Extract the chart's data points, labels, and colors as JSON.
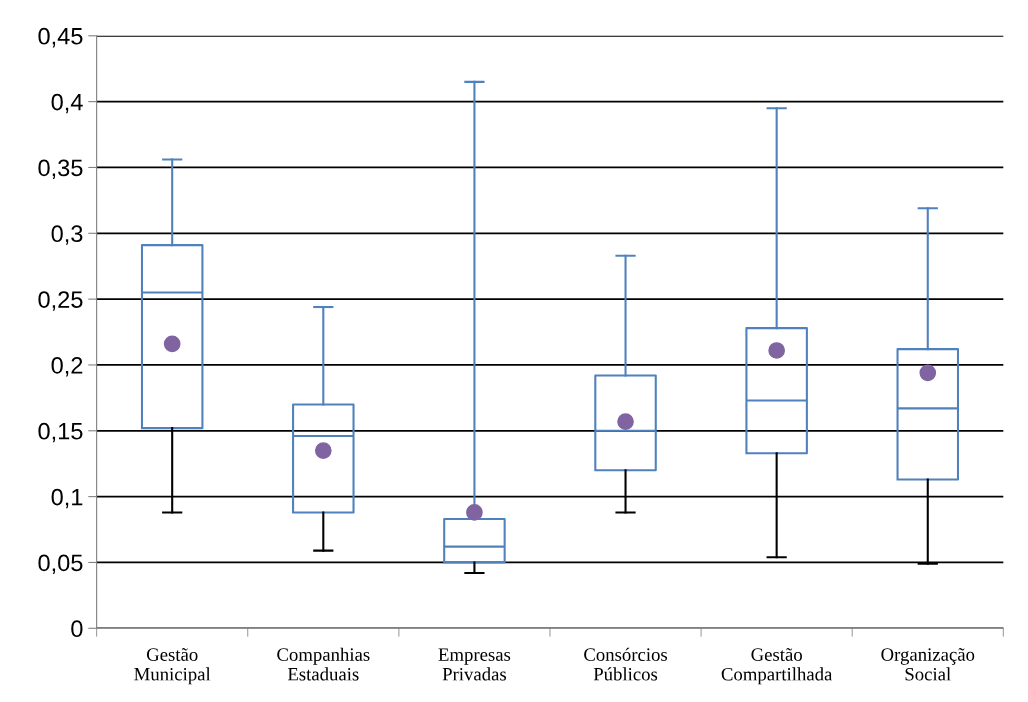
{
  "chart_data": {
    "type": "box",
    "categories": [
      "Gestão\nMunicipal",
      "Companhias\nEstaduais",
      "Empresas\nPrivadas",
      "Consórcios\nPúblicos",
      "Gestão\nCompartilhada",
      "Organização\nSocial"
    ],
    "series": [
      {
        "color": "#4f81bd",
        "boxes": [
          {
            "low": 0.088,
            "q1": 0.152,
            "median": 0.255,
            "q3": 0.291,
            "high": 0.356,
            "mean": 0.216
          },
          {
            "low": 0.059,
            "q1": 0.088,
            "median": 0.146,
            "q3": 0.17,
            "high": 0.244,
            "mean": 0.135
          },
          {
            "low": 0.042,
            "q1": 0.05,
            "median": 0.062,
            "q3": 0.083,
            "high": 0.415,
            "mean": 0.088
          },
          {
            "low": 0.088,
            "q1": 0.12,
            "median": 0.15,
            "q3": 0.192,
            "high": 0.283,
            "mean": 0.157
          },
          {
            "low": 0.054,
            "q1": 0.133,
            "median": 0.173,
            "q3": 0.228,
            "high": 0.395,
            "mean": 0.211
          },
          {
            "low": 0.049,
            "q1": 0.113,
            "median": 0.167,
            "q3": 0.212,
            "high": 0.319,
            "mean": 0.194
          }
        ]
      }
    ],
    "ylim": [
      0,
      0.45
    ],
    "yticks": [
      0,
      {
        "value": 0.05,
        "label": "0,05"
      },
      {
        "value": 0.1,
        "label": "0,1"
      },
      {
        "value": 0.15,
        "label": "0,15"
      },
      {
        "value": 0.2,
        "label": "0,2"
      },
      {
        "value": 0.25,
        "label": "0,25"
      },
      {
        "value": 0.3,
        "label": "0,3"
      },
      {
        "value": 0.35,
        "label": "0,35"
      },
      {
        "value": 0.4,
        "label": "0,4"
      },
      {
        "value": 0.45,
        "label": "0,45"
      }
    ],
    "grid": "y",
    "legend": false,
    "marker": "circle"
  }
}
